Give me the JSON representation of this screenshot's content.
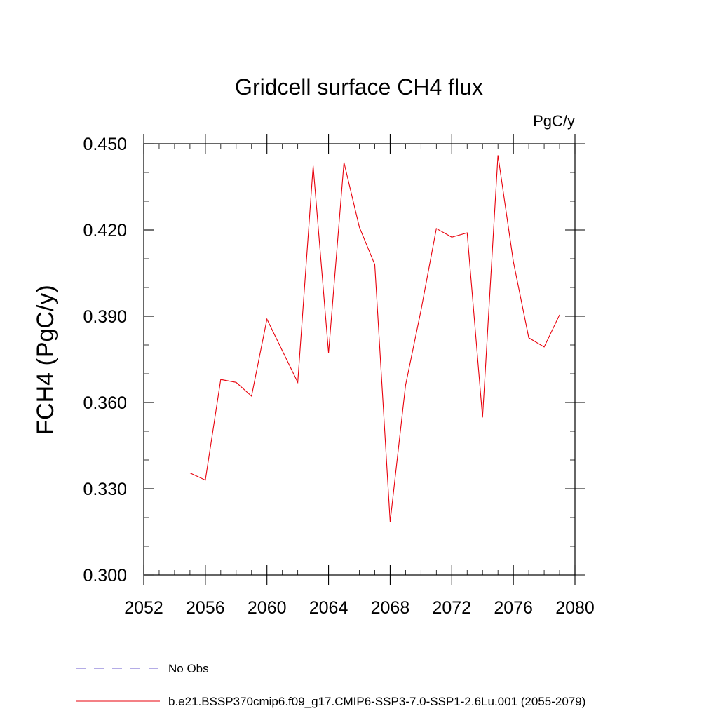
{
  "chart_data": {
    "type": "line",
    "title": "Gridcell surface CH4 flux",
    "units_label": "PgC/y",
    "xlabel": "",
    "ylabel": "FCH4  (PgC/y)",
    "xlim": [
      2052,
      2080
    ],
    "ylim": [
      0.3,
      0.45
    ],
    "x_ticks": [
      2052,
      2056,
      2060,
      2064,
      2068,
      2072,
      2076,
      2080
    ],
    "x_tick_labels": [
      "2052",
      "2056",
      "2060",
      "2064",
      "2068",
      "2072",
      "2076",
      "2080"
    ],
    "y_ticks": [
      0.3,
      0.33,
      0.36,
      0.39,
      0.42,
      0.45
    ],
    "y_tick_labels": [
      "0.300",
      "0.330",
      "0.360",
      "0.390",
      "0.420",
      "0.450"
    ],
    "grid": false,
    "legend_position": "bottom-left",
    "legend": [
      {
        "label": "No Obs",
        "color": "#6a5acd",
        "style": "dashed"
      },
      {
        "label": "b.e21.BSSP370cmip6.f09_g17.CMIP6-SSP3-7.0-SSP1-2.6Lu.001 (2055-2079)",
        "color": "#e8000b",
        "style": "solid"
      }
    ],
    "series": [
      {
        "color": "#e8000b",
        "x": [
          2055,
          2056,
          2057,
          2058,
          2059,
          2060,
          2061,
          2062,
          2063,
          2064,
          2065,
          2066,
          2067,
          2068,
          2069,
          2070,
          2071,
          2072,
          2073,
          2074,
          2075,
          2076,
          2077,
          2078,
          2079
        ],
        "values": [
          0.3355,
          0.333,
          0.368,
          0.367,
          0.3622,
          0.389,
          0.378,
          0.367,
          0.4423,
          0.3772,
          0.4435,
          0.421,
          0.408,
          0.3185,
          0.366,
          0.392,
          0.4205,
          0.4175,
          0.419,
          0.3548,
          0.446,
          0.409,
          0.3825,
          0.3793,
          0.3905
        ]
      }
    ]
  }
}
